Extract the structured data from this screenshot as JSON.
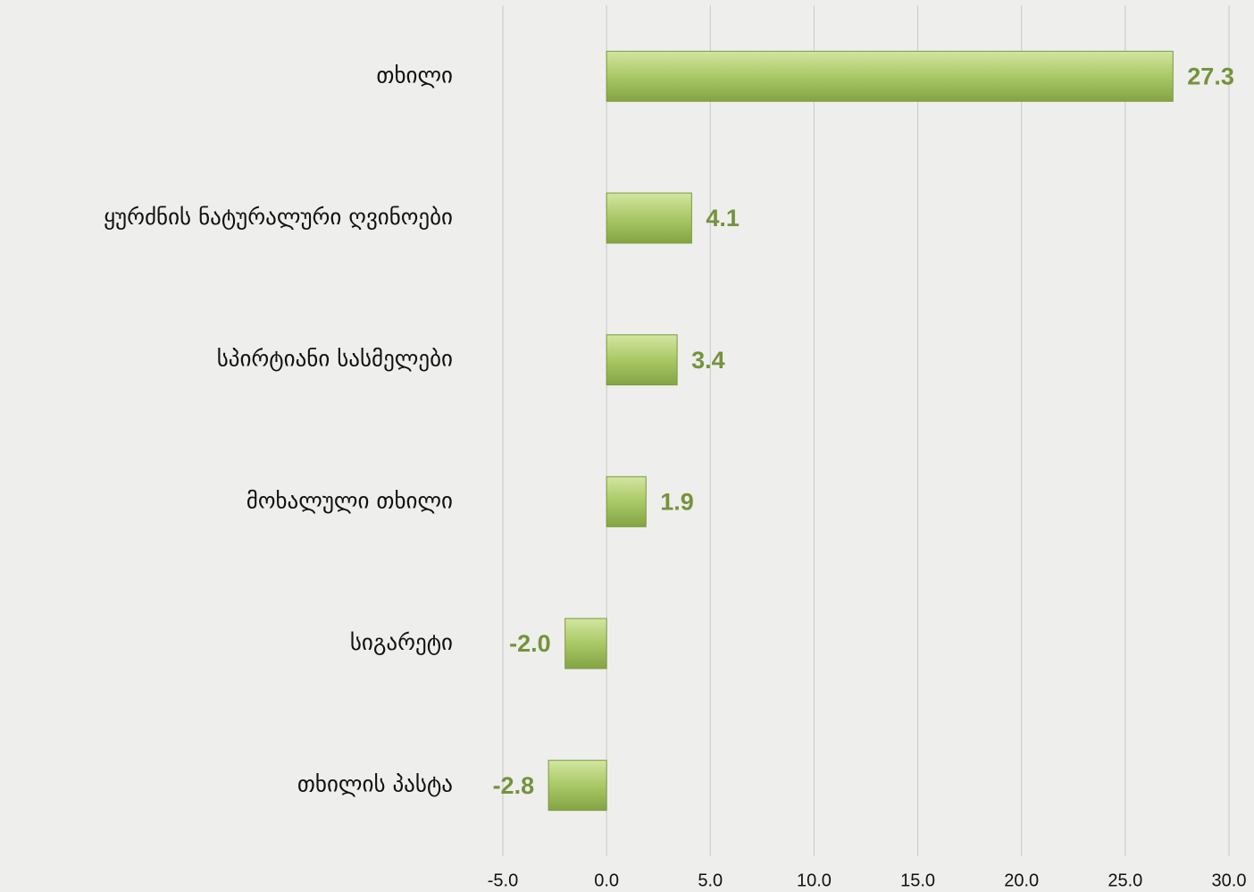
{
  "chart_data": {
    "type": "barh",
    "categories": [
      "თხილი",
      "ყურძნის ნატურალური ღვინოები",
      "სპირტიანი სასმელები",
      "მოხალული თხილი",
      "სიგარეტი",
      "თხილის პასტა"
    ],
    "values": [
      27.3,
      4.1,
      3.4,
      1.9,
      -2.0,
      -2.8
    ],
    "value_labels": [
      "27.3",
      "4.1",
      "3.4",
      "1.9",
      "-2.0",
      "-2.8"
    ],
    "color": "#9bbb59",
    "xlim": [
      -5,
      30
    ],
    "xticks": [
      {
        "value": -5,
        "label": "-5.0"
      },
      {
        "value": 0,
        "label": "0.0"
      },
      {
        "value": 5,
        "label": "5.0"
      },
      {
        "value": 10,
        "label": "10.0"
      },
      {
        "value": 15,
        "label": "15.0"
      },
      {
        "value": 20,
        "label": "20.0"
      },
      {
        "value": 25,
        "label": "25.0"
      },
      {
        "value": 30,
        "label": "30.0"
      }
    ],
    "grid": true
  }
}
